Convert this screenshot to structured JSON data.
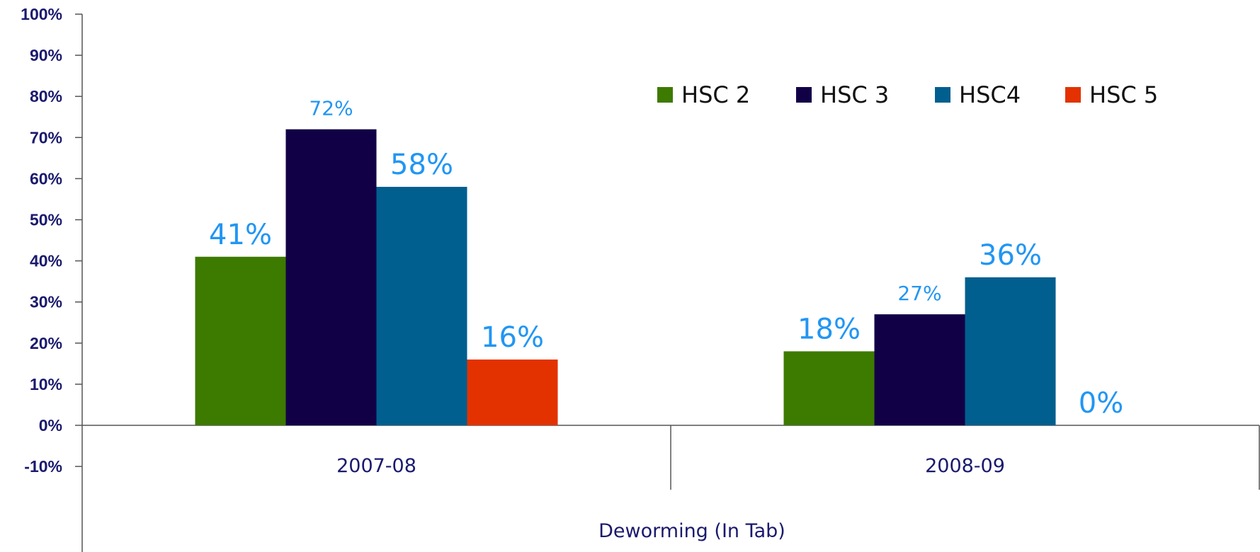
{
  "chart_data": {
    "type": "bar",
    "group_label": "Deworming (In Tab)",
    "categories": [
      "2007-08",
      "2008-09"
    ],
    "series": [
      {
        "name": "HSC 2",
        "values": [
          41,
          18
        ],
        "labels": [
          "41%",
          "18%"
        ],
        "color": "#3d7a00"
      },
      {
        "name": "HSC 3",
        "values": [
          72,
          27
        ],
        "labels": [
          "72%",
          "27%"
        ],
        "color": "#120047"
      },
      {
        "name": "HSC4",
        "values": [
          58,
          36
        ],
        "labels": [
          "58%",
          "36%"
        ],
        "color": "#005f8f"
      },
      {
        "name": "HSC 5",
        "values": [
          16,
          0
        ],
        "labels": [
          "16%",
          "0%"
        ],
        "color": "#e33200"
      }
    ],
    "ylim": [
      -10,
      100
    ],
    "yticks": [
      -10,
      0,
      10,
      20,
      30,
      40,
      50,
      60,
      70,
      80,
      90,
      100
    ],
    "ytick_labels": [
      "-10%",
      "0%",
      "10%",
      "20%",
      "30%",
      "40%",
      "50%",
      "60%",
      "70%",
      "80%",
      "90%",
      "100%"
    ],
    "grid": false,
    "legend_position": "top-right",
    "label_color": "#2196f3",
    "axis_text_color": "#1a1a6e"
  }
}
